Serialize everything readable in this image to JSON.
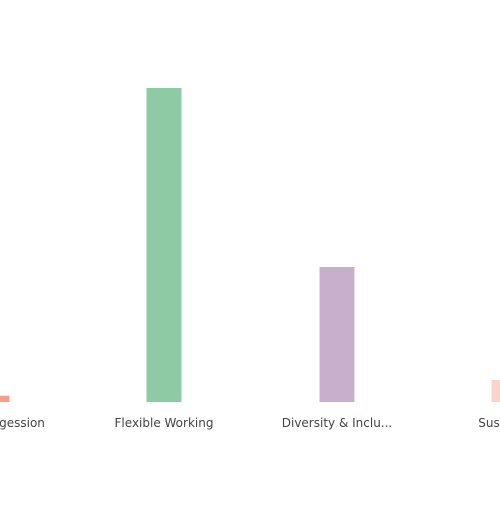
{
  "chart_data": {
    "type": "bar",
    "categories": [
      "gession",
      "Flexible Working",
      "Diversity & Inclu...",
      "Susta"
    ],
    "values": [
      2,
      100,
      43,
      7
    ],
    "ylim": [
      0,
      100
    ],
    "colors": [
      "#f4a08c",
      "#8ecba5",
      "#c8b0cc",
      "#fbd3cb"
    ]
  }
}
